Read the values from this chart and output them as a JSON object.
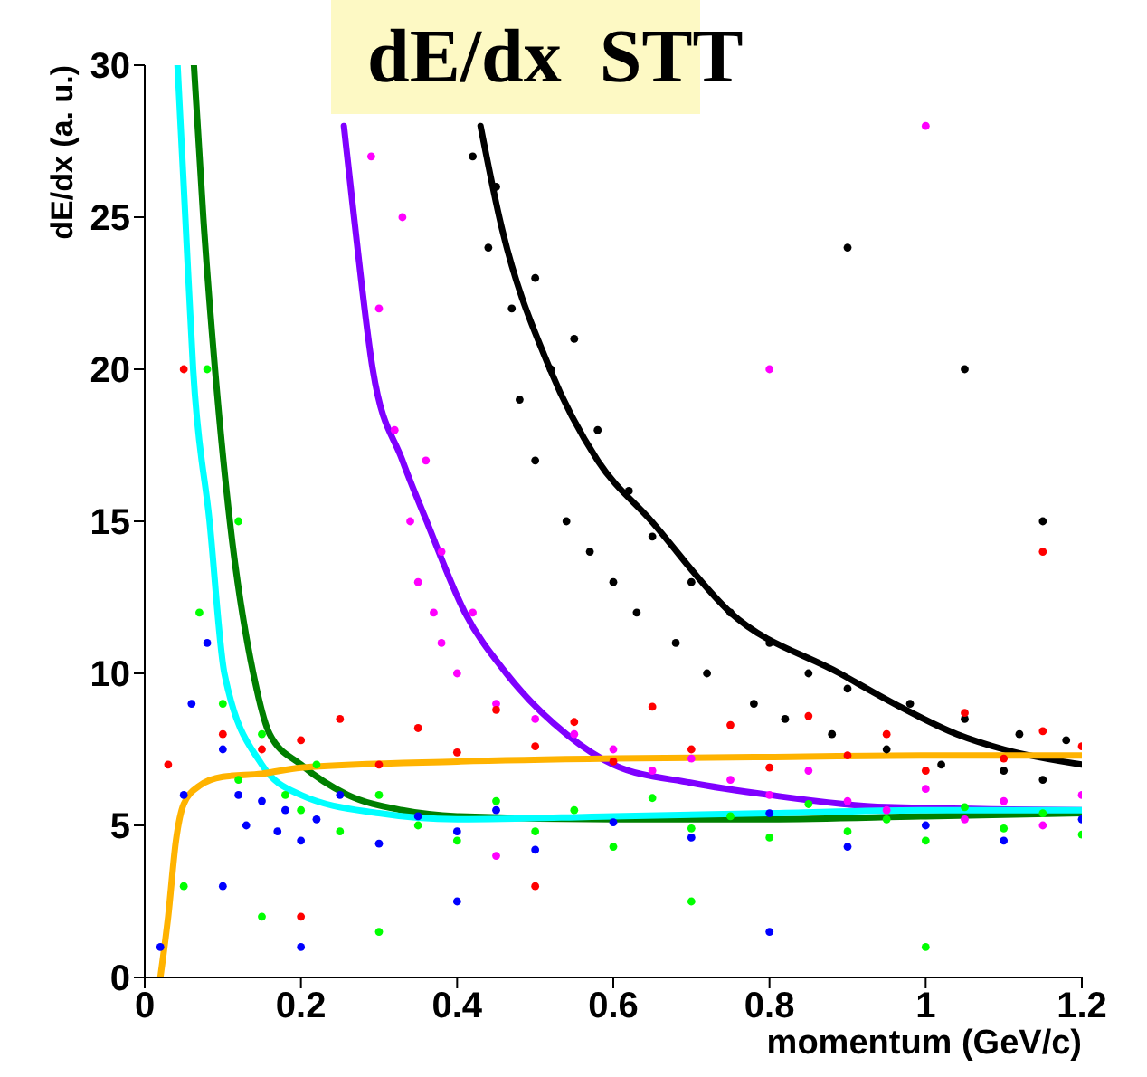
{
  "chart_data": {
    "type": "scatter",
    "title": "dE/dx  STT",
    "xlabel": "momentum (GeV/c)",
    "ylabel": "dE/dx (a. u.)",
    "xlim": [
      0,
      1.2
    ],
    "ylim": [
      0,
      30
    ],
    "xticks": [
      0,
      0.2,
      0.4,
      0.6,
      0.8,
      1,
      1.2
    ],
    "yticks": [
      0,
      5,
      10,
      15,
      20,
      25,
      30
    ],
    "grid": false,
    "legend": false,
    "series": [
      {
        "marker": "circle",
        "color": "#000000",
        "x": [
          0.42,
          0.44,
          0.45,
          0.47,
          0.48,
          0.5,
          0.5,
          0.52,
          0.54,
          0.55,
          0.57,
          0.58,
          0.6,
          0.62,
          0.63,
          0.65,
          0.68,
          0.7,
          0.72,
          0.75,
          0.78,
          0.8,
          0.82,
          0.85,
          0.88,
          0.9,
          0.95,
          0.98,
          1.02,
          1.05,
          1.1,
          1.12,
          1.15,
          1.18,
          0.9,
          1.05,
          1.15
        ],
        "values": [
          27,
          24,
          26,
          22,
          19,
          23,
          17,
          20,
          15,
          21,
          14,
          18,
          13,
          16,
          12,
          14.5,
          11,
          13,
          10,
          12,
          9,
          11,
          8.5,
          10,
          8,
          9.5,
          7.5,
          9,
          7,
          8.5,
          6.8,
          8,
          6.5,
          7.8,
          24,
          20,
          15
        ]
      },
      {
        "marker": "circle",
        "color": "#ff00ff",
        "x": [
          0.3,
          0.32,
          0.33,
          0.34,
          0.35,
          0.36,
          0.37,
          0.38,
          0.38,
          0.4,
          0.42,
          0.45,
          0.5,
          0.55,
          0.6,
          0.65,
          0.7,
          0.75,
          0.8,
          0.85,
          0.9,
          0.95,
          1,
          1.05,
          1.1,
          1.15,
          1.2,
          0.29,
          0.45,
          0.8,
          1
        ],
        "values": [
          22,
          18,
          25,
          15,
          13,
          17,
          12,
          11,
          14,
          10,
          12,
          9,
          8.5,
          8,
          7.5,
          6.8,
          7.2,
          6.5,
          6,
          6.8,
          5.8,
          5.5,
          6.2,
          5.2,
          5.8,
          5,
          6,
          27,
          4,
          20,
          28
        ]
      },
      {
        "marker": "circle",
        "color": "#ff0000",
        "x": [
          0.03,
          0.1,
          0.15,
          0.2,
          0.25,
          0.3,
          0.35,
          0.4,
          0.45,
          0.5,
          0.55,
          0.6,
          0.65,
          0.7,
          0.75,
          0.8,
          0.85,
          0.9,
          0.95,
          1,
          1.05,
          1.1,
          1.15,
          1.2,
          0.2,
          0.5,
          1.15,
          0.05
        ],
        "values": [
          7,
          8,
          7.5,
          7.8,
          8.5,
          7,
          8.2,
          7.4,
          8.8,
          7.6,
          8.4,
          7.1,
          8.9,
          7.5,
          8.3,
          6.9,
          8.6,
          7.3,
          8,
          6.8,
          8.7,
          7.2,
          8.1,
          7.6,
          2,
          3,
          14,
          20
        ]
      },
      {
        "marker": "circle",
        "color": "#00ff00",
        "x": [
          0.05,
          0.07,
          0.08,
          0.1,
          0.12,
          0.12,
          0.15,
          0.18,
          0.2,
          0.22,
          0.25,
          0.3,
          0.35,
          0.4,
          0.45,
          0.5,
          0.55,
          0.6,
          0.65,
          0.7,
          0.75,
          0.8,
          0.85,
          0.9,
          0.95,
          1,
          1.05,
          1.1,
          1.15,
          1.2,
          0.15,
          0.3,
          0.7,
          1
        ],
        "values": [
          3,
          12,
          20,
          9,
          15,
          6.5,
          8,
          6,
          5.5,
          7,
          4.8,
          6,
          5,
          4.5,
          5.8,
          4.8,
          5.5,
          4.3,
          5.9,
          4.9,
          5.3,
          4.6,
          5.7,
          4.8,
          5.2,
          4.5,
          5.6,
          4.9,
          5.4,
          4.7,
          2,
          1.5,
          2.5,
          1
        ]
      },
      {
        "marker": "circle",
        "color": "#0000ff",
        "x": [
          0.02,
          0.05,
          0.06,
          0.08,
          0.1,
          0.1,
          0.12,
          0.13,
          0.15,
          0.17,
          0.18,
          0.2,
          0.22,
          0.25,
          0.3,
          0.35,
          0.4,
          0.45,
          0.5,
          0.6,
          0.7,
          0.8,
          0.9,
          1,
          1.1,
          1.2,
          0.2,
          0.4,
          0.8
        ],
        "values": [
          1,
          6,
          9,
          11,
          7.5,
          3,
          6,
          5,
          5.8,
          4.8,
          5.5,
          4.5,
          5.2,
          6,
          4.4,
          5.3,
          4.8,
          5.5,
          4.2,
          5.1,
          4.6,
          5.4,
          4.3,
          5,
          4.5,
          5.2,
          1,
          2.5,
          1.5
        ]
      },
      {
        "type": "line",
        "marker": "none",
        "line_style": "solid",
        "color": "#000000",
        "x": [
          0.43,
          0.454,
          0.519,
          0.58,
          0.649,
          0.75,
          0.89,
          0.96,
          1.04,
          1.1,
          1.2
        ],
        "values": [
          28,
          25,
          20,
          17,
          15,
          12,
          10,
          9,
          8,
          7.5,
          7
        ]
      },
      {
        "type": "line",
        "marker": "none",
        "line_style": "solid",
        "color": "#7f00ff",
        "x": [
          0.255,
          0.268,
          0.292,
          0.33,
          0.361,
          0.41,
          0.463,
          0.54,
          0.6,
          0.7,
          0.8,
          0.95,
          1.2
        ],
        "values": [
          28,
          25,
          20,
          17,
          15,
          12,
          10,
          8,
          7,
          6.4,
          6,
          5.6,
          5.5
        ]
      },
      {
        "type": "line",
        "marker": "none",
        "line_style": "solid",
        "color": "#007f00",
        "x": [
          0.063,
          0.075,
          0.09,
          0.109,
          0.139,
          0.16,
          0.2,
          0.26,
          0.33,
          0.4,
          0.6,
          0.8,
          1,
          1.2
        ],
        "values": [
          30,
          25,
          20,
          15,
          10,
          8,
          7,
          6,
          5.5,
          5.3,
          5.2,
          5.2,
          5.3,
          5.4
        ]
      },
      {
        "type": "line",
        "marker": "none",
        "line_style": "solid",
        "color": "#00ffff",
        "x": [
          0.042,
          0.046,
          0.052,
          0.062,
          0.083,
          0.102,
          0.15,
          0.2,
          0.3,
          0.4,
          0.6,
          0.8,
          1,
          1.2
        ],
        "values": [
          30,
          28,
          25,
          20,
          15,
          10,
          7,
          6,
          5.4,
          5.2,
          5.3,
          5.4,
          5.5,
          5.5
        ]
      },
      {
        "type": "line",
        "marker": "none",
        "line_style": "solid",
        "color": "#ffb300",
        "x": [
          0.02,
          0.03,
          0.04,
          0.05,
          0.07,
          0.1,
          0.15,
          0.2,
          0.4,
          0.6,
          0.8,
          1,
          1.2
        ],
        "values": [
          0,
          2,
          4.5,
          5.7,
          6.3,
          6.6,
          6.7,
          6.9,
          7.1,
          7.2,
          7.25,
          7.3,
          7.3
        ]
      }
    ]
  }
}
